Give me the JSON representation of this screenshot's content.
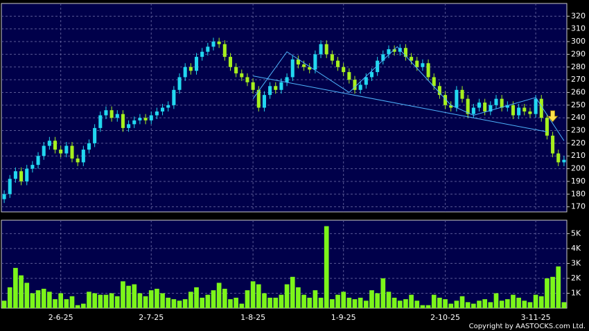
{
  "chart_data": [
    {
      "type": "candlestick",
      "up_color": "#22d8f0",
      "down_color": "#a6f01e",
      "xlim": [
        -0.5,
        99.5
      ],
      "ylim": [
        166,
        330
      ],
      "yticks": [
        170,
        180,
        190,
        200,
        210,
        220,
        230,
        240,
        250,
        260,
        270,
        280,
        290,
        300,
        310,
        320
      ],
      "grid": true,
      "open": [
        176,
        180,
        192,
        198,
        190,
        200,
        203,
        210,
        218,
        222,
        215,
        212,
        218,
        208,
        205,
        215,
        220,
        232,
        242,
        246,
        240,
        243,
        232,
        235,
        238,
        240,
        238,
        242,
        245,
        248,
        250,
        262,
        272,
        280,
        277,
        288,
        292,
        296,
        300,
        298,
        288,
        280,
        275,
        272,
        268,
        262,
        248,
        258,
        265,
        262,
        268,
        272,
        286,
        282,
        280,
        278,
        290,
        298,
        290,
        285,
        280,
        276,
        270,
        262,
        266,
        272,
        276,
        285,
        290,
        294,
        292,
        295,
        288,
        285,
        280,
        283,
        272,
        265,
        258,
        250,
        248,
        262,
        255,
        243,
        248,
        252,
        245,
        250,
        255,
        248,
        250,
        242,
        248,
        245,
        243,
        255,
        240,
        226,
        212,
        205
      ],
      "high": [
        183,
        195,
        201,
        201,
        203,
        206,
        213,
        221,
        225,
        225,
        218,
        221,
        221,
        211,
        218,
        223,
        235,
        245,
        249,
        249,
        246,
        246,
        238,
        241,
        243,
        243,
        245,
        248,
        251,
        253,
        265,
        275,
        283,
        283,
        291,
        295,
        299,
        303,
        303,
        301,
        291,
        283,
        278,
        275,
        271,
        265,
        261,
        268,
        268,
        271,
        275,
        289,
        289,
        285,
        283,
        293,
        301,
        301,
        293,
        288,
        283,
        279,
        273,
        269,
        275,
        279,
        288,
        293,
        297,
        297,
        298,
        298,
        291,
        288,
        286,
        286,
        275,
        268,
        261,
        253,
        265,
        265,
        258,
        251,
        255,
        255,
        253,
        258,
        258,
        253,
        253,
        251,
        251,
        248,
        258,
        258,
        243,
        229,
        215,
        210
      ],
      "low": [
        173,
        177,
        189,
        187,
        187,
        197,
        200,
        207,
        215,
        212,
        209,
        209,
        205,
        202,
        202,
        212,
        217,
        229,
        239,
        237,
        237,
        229,
        229,
        232,
        235,
        235,
        235,
        239,
        242,
        245,
        247,
        259,
        269,
        274,
        274,
        285,
        289,
        293,
        295,
        285,
        277,
        272,
        269,
        265,
        259,
        245,
        245,
        255,
        259,
        259,
        265,
        269,
        279,
        277,
        275,
        275,
        287,
        287,
        282,
        277,
        273,
        267,
        259,
        259,
        263,
        269,
        273,
        282,
        287,
        289,
        289,
        285,
        282,
        277,
        277,
        269,
        262,
        255,
        247,
        245,
        245,
        252,
        240,
        240,
        245,
        242,
        242,
        247,
        245,
        245,
        239,
        239,
        242,
        240,
        240,
        237,
        223,
        209,
        202,
        202
      ],
      "close": [
        180,
        192,
        198,
        190,
        200,
        203,
        210,
        218,
        222,
        215,
        212,
        218,
        208,
        205,
        215,
        220,
        232,
        242,
        246,
        240,
        243,
        232,
        235,
        238,
        240,
        238,
        242,
        245,
        248,
        250,
        262,
        272,
        280,
        277,
        288,
        292,
        296,
        300,
        298,
        288,
        280,
        275,
        272,
        268,
        262,
        248,
        258,
        265,
        262,
        268,
        272,
        286,
        282,
        280,
        278,
        290,
        298,
        290,
        285,
        280,
        276,
        270,
        262,
        266,
        272,
        276,
        285,
        290,
        294,
        292,
        295,
        288,
        285,
        280,
        283,
        272,
        265,
        258,
        250,
        248,
        262,
        255,
        243,
        248,
        252,
        245,
        250,
        255,
        248,
        250,
        242,
        248,
        245,
        243,
        255,
        240,
        226,
        212,
        205,
        207
      ],
      "trend_lines": [
        {
          "color": "#4fb6ff",
          "points": [
            [
              44,
              255
            ],
            [
              50,
              292
            ],
            [
              61,
              260
            ],
            [
              69.5,
              296
            ],
            [
              79,
              250
            ],
            [
              83,
              242
            ],
            [
              94,
              256
            ],
            [
              99,
              222
            ]
          ]
        },
        {
          "color": "#4fb6ff",
          "points": [
            [
              44,
              273
            ],
            [
              96,
              229
            ]
          ]
        }
      ],
      "signal_arrow": {
        "color": "#ffe14a",
        "index": 97,
        "price": 238
      }
    },
    {
      "type": "bar",
      "color": "#7cf51a",
      "xlim": [
        -0.5,
        99.5
      ],
      "ylim": [
        0,
        5900
      ],
      "yticks": [
        {
          "value": 1000,
          "label": "1K"
        },
        {
          "value": 2000,
          "label": "2K"
        },
        {
          "value": 3000,
          "label": "3K"
        },
        {
          "value": 4000,
          "label": "4K"
        },
        {
          "value": 5000,
          "label": "5K"
        }
      ],
      "xticks": [
        {
          "value": 10,
          "label": "2-6-25"
        },
        {
          "value": 26,
          "label": "2-7-25"
        },
        {
          "value": 44,
          "label": "1-8-25"
        },
        {
          "value": 60,
          "label": "1-9-25"
        },
        {
          "value": 78,
          "label": "2-10-25"
        },
        {
          "value": 94,
          "label": "3-11-25"
        }
      ],
      "grid": true,
      "values": [
        500,
        1400,
        2700,
        2200,
        1700,
        1000,
        1200,
        1300,
        1100,
        600,
        1000,
        600,
        800,
        200,
        300,
        1100,
        1000,
        900,
        900,
        1000,
        800,
        1800,
        1500,
        1600,
        1000,
        800,
        1200,
        1300,
        1000,
        700,
        600,
        500,
        600,
        1100,
        1400,
        700,
        900,
        1200,
        1700,
        1300,
        600,
        700,
        300,
        1200,
        1800,
        1600,
        1000,
        700,
        700,
        900,
        1600,
        2100,
        1400,
        900,
        700,
        1200,
        700,
        5500,
        600,
        900,
        1100,
        700,
        600,
        700,
        500,
        1200,
        1000,
        2000,
        1100,
        700,
        500,
        600,
        900,
        500,
        200,
        200,
        900,
        700,
        600,
        300,
        500,
        800,
        400,
        300,
        500,
        600,
        400,
        1000,
        500,
        600,
        900,
        700,
        500,
        400,
        900,
        800,
        2000,
        2100,
        2800,
        400
      ]
    }
  ],
  "footer": "Copyright by AASTOCKS.com Ltd."
}
